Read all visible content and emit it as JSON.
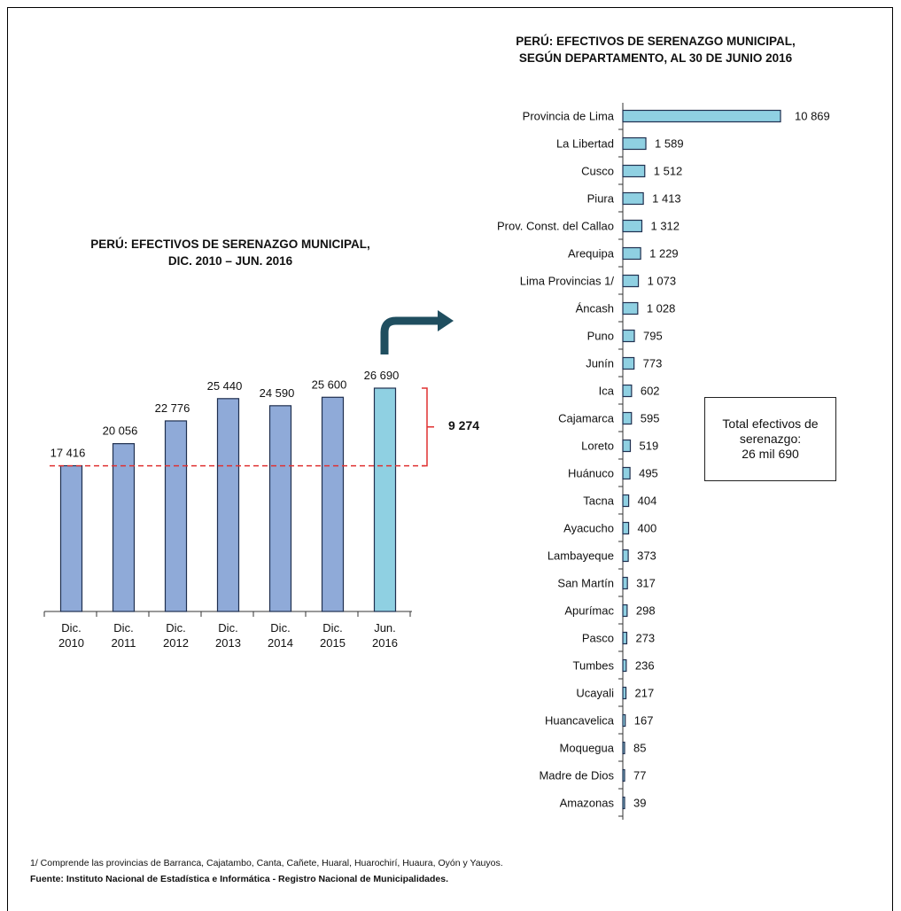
{
  "chart_data": [
    {
      "type": "bar",
      "title": "PERÚ: EFECTIVOS DE SERENAZGO MUNICIPAL, DIC. 2010 – JUN. 2016",
      "categories": [
        [
          "Dic.",
          "2010"
        ],
        [
          "Dic.",
          "2011"
        ],
        [
          "Dic.",
          "2012"
        ],
        [
          "Dic.",
          "2013"
        ],
        [
          "Dic.",
          "2014"
        ],
        [
          "Dic.",
          "2015"
        ],
        [
          "Jun.",
          "2016"
        ]
      ],
      "values": [
        17416,
        20056,
        22776,
        25440,
        24590,
        25600,
        26690
      ],
      "value_labels": [
        "17 416",
        "20 056",
        "22 776",
        "25 440",
        "24 590",
        "25 600",
        "26 690"
      ],
      "bar_color": "#8faad8",
      "highlight_color": "#8fd0e2",
      "reference_line": {
        "value": 17416,
        "color": "#e03131",
        "style": "dashed"
      },
      "difference_annotation": "9 274",
      "xlabel": "",
      "ylabel": "",
      "grid": false
    },
    {
      "type": "bar",
      "orientation": "horizontal",
      "title": "PERÚ: EFECTIVOS DE SERENAZGO MUNICIPAL, SEGÚN DEPARTAMENTO, AL 30 DE JUNIO 2016",
      "categories": [
        "Provincia de Lima",
        "La Libertad",
        "Cusco",
        "Piura",
        "Prov. Const. del Callao",
        "Arequipa",
        "Lima Provincias 1/",
        "Áncash",
        "Puno",
        "Junín",
        "Ica",
        "Cajamarca",
        "Loreto",
        "Huánuco",
        "Tacna",
        "Ayacucho",
        "Lambayeque",
        "San Martín",
        "Apurímac",
        "Pasco",
        "Tumbes",
        "Ucayali",
        "Huancavelica",
        "Moquegua",
        "Madre de Dios",
        "Amazonas"
      ],
      "values": [
        10869,
        1589,
        1512,
        1413,
        1312,
        1229,
        1073,
        1028,
        795,
        773,
        602,
        595,
        519,
        495,
        404,
        400,
        373,
        317,
        298,
        273,
        236,
        217,
        167,
        85,
        77,
        39
      ],
      "value_labels": [
        "10 869",
        "1 589",
        "1 512",
        "1 413",
        "1 312",
        "1 229",
        "1 073",
        "1 028",
        "795",
        "773",
        "602",
        "595",
        "519",
        "495",
        "404",
        "400",
        "373",
        "317",
        "298",
        "273",
        "236",
        "217",
        "167",
        "85",
        "77",
        "39"
      ],
      "bar_color": "#8fd0e2",
      "xlabel": "",
      "ylabel": "",
      "grid": false
    }
  ],
  "left_title_lines": [
    "PERÚ: EFECTIVOS DE SERENAZGO MUNICIPAL,",
    "DIC. 2010 – JUN. 2016"
  ],
  "right_title_lines": [
    "PERÚ: EFECTIVOS DE SERENAZGO MUNICIPAL,",
    "SEGÚN DEPARTAMENTO, AL 30 DE JUNIO 2016"
  ],
  "total_box_lines": [
    "Total efectivos de",
    "serenazgo:",
    "26 mil 690"
  ],
  "footnote": "1/ Comprende las provincias de Barranca, Cajatambo, Canta, Cañete, Huaral, Huarochirí, Huaura, Oyón y Yauyos.",
  "source": "Fuente: Instituto Nacional de Estadística e Informática - Registro Nacional de Municipalidades.",
  "arrow_icon": "curved-arrow-right-icon",
  "arrow_color": "#1f4e5f"
}
